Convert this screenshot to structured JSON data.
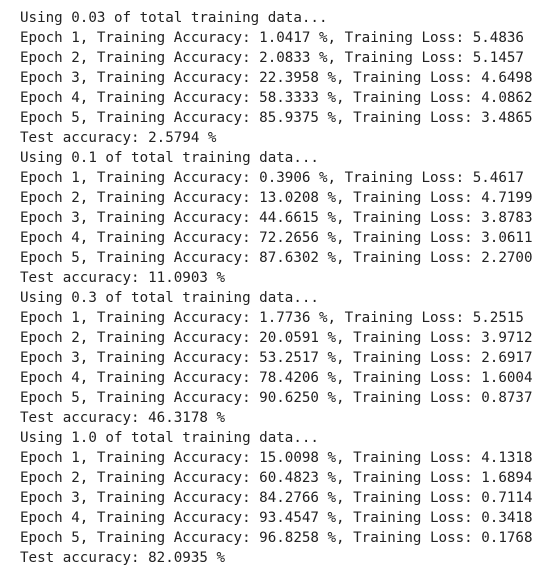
{
  "lines": [
    "Using 0.03 of total training data...",
    "Epoch 1, Training Accuracy: 1.0417 %, Training Loss: 5.4836",
    "Epoch 2, Training Accuracy: 2.0833 %, Training Loss: 5.1457",
    "Epoch 3, Training Accuracy: 22.3958 %, Training Loss: 4.6498",
    "Epoch 4, Training Accuracy: 58.3333 %, Training Loss: 4.0862",
    "Epoch 5, Training Accuracy: 85.9375 %, Training Loss: 3.4865",
    "Test accuracy: 2.5794 %",
    "Using 0.1 of total training data...",
    "Epoch 1, Training Accuracy: 0.3906 %, Training Loss: 5.4617",
    "Epoch 2, Training Accuracy: 13.0208 %, Training Loss: 4.7199",
    "Epoch 3, Training Accuracy: 44.6615 %, Training Loss: 3.8783",
    "Epoch 4, Training Accuracy: 72.2656 %, Training Loss: 3.0611",
    "Epoch 5, Training Accuracy: 87.6302 %, Training Loss: 2.2700",
    "Test accuracy: 11.0903 %",
    "Using 0.3 of total training data...",
    "Epoch 1, Training Accuracy: 1.7736 %, Training Loss: 5.2515",
    "Epoch 2, Training Accuracy: 20.0591 %, Training Loss: 3.9712",
    "Epoch 3, Training Accuracy: 53.2517 %, Training Loss: 2.6917",
    "Epoch 4, Training Accuracy: 78.4206 %, Training Loss: 1.6004",
    "Epoch 5, Training Accuracy: 90.6250 %, Training Loss: 0.8737",
    "Test accuracy: 46.3178 %",
    "Using 1.0 of total training data...",
    "Epoch 1, Training Accuracy: 15.0098 %, Training Loss: 4.1318",
    "Epoch 2, Training Accuracy: 60.4823 %, Training Loss: 1.6894",
    "Epoch 3, Training Accuracy: 84.2766 %, Training Loss: 0.7114",
    "Epoch 4, Training Accuracy: 93.4547 %, Training Loss: 0.3418",
    "Epoch 5, Training Accuracy: 96.8258 %, Training Loss: 0.1768",
    "Test accuracy: 82.0935 %"
  ]
}
